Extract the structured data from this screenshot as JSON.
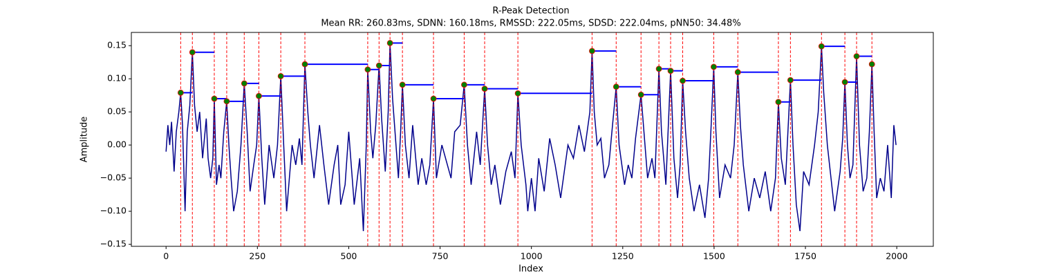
{
  "chart_data": {
    "type": "line",
    "title": "R-Peak Detection",
    "subtitle": "Mean RR: 260.83ms, SDNN: 160.18ms, RMSSD: 222.05ms, SDSD: 222.04ms, pNN50: 34.48%",
    "xlabel": "Index",
    "ylabel": "Amplitude",
    "xlim": [
      -95,
      2100
    ],
    "ylim": [
      -0.153,
      0.17
    ],
    "xticks": [
      0,
      250,
      500,
      750,
      1000,
      1250,
      1500,
      1750,
      2000
    ],
    "yticks": [
      {
        "value": -0.15,
        "label": "−0.15"
      },
      {
        "value": -0.1,
        "label": "−0.10"
      },
      {
        "value": -0.05,
        "label": "−0.05"
      },
      {
        "value": 0,
        "label": "0.00"
      },
      {
        "value": 0.05,
        "label": "0.05"
      },
      {
        "value": 0.1,
        "label": "0.10"
      },
      {
        "value": 0.15,
        "label": "0.15"
      }
    ],
    "x": [
      0,
      5,
      10,
      15,
      22,
      28,
      35,
      40,
      45,
      52,
      58,
      65,
      72,
      78,
      85,
      92,
      100,
      110,
      115,
      122,
      128,
      132,
      138,
      145,
      150,
      158,
      166,
      172,
      178,
      185,
      195,
      205,
      214,
      222,
      230,
      240,
      248,
      254,
      262,
      270,
      282,
      295,
      305,
      314,
      322,
      330,
      345,
      355,
      365,
      372,
      380,
      388,
      395,
      405,
      420,
      432,
      445,
      460,
      470,
      478,
      490,
      500,
      515,
      530,
      540,
      548,
      552,
      560,
      566,
      574,
      583,
      590,
      600,
      608,
      613,
      620,
      628,
      636,
      642,
      647,
      655,
      665,
      675,
      690,
      700,
      712,
      722,
      732,
      740,
      755,
      770,
      780,
      790,
      805,
      816,
      825,
      835,
      850,
      860,
      872,
      880,
      890,
      900,
      915,
      930,
      945,
      955,
      963,
      972,
      985,
      990,
      1000,
      1010,
      1020,
      1035,
      1050,
      1065,
      1080,
      1090,
      1100,
      1115,
      1130,
      1145,
      1160,
      1166,
      1172,
      1180,
      1190,
      1200,
      1212,
      1222,
      1232,
      1240,
      1255,
      1265,
      1275,
      1285,
      1300,
      1308,
      1318,
      1330,
      1338,
      1349,
      1356,
      1368,
      1381,
      1390,
      1400,
      1407,
      1414,
      1422,
      1432,
      1445,
      1460,
      1475,
      1485,
      1492,
      1499,
      1505,
      1515,
      1530,
      1545,
      1555,
      1565,
      1572,
      1580,
      1595,
      1610,
      1625,
      1640,
      1655,
      1668,
      1676,
      1684,
      1695,
      1709,
      1716,
      1725,
      1735,
      1745,
      1760,
      1775,
      1785,
      1794,
      1800,
      1810,
      1820,
      1830,
      1845,
      1852,
      1858,
      1865,
      1872,
      1880,
      1890,
      1898,
      1908,
      1918,
      1925,
      1932,
      1938,
      1945,
      1955,
      1965,
      1975,
      1985,
      1992,
      1998
    ],
    "signal": {
      "color": "#00008b",
      "values": [
        -0.01,
        0.03,
        0.0,
        0.035,
        -0.04,
        0.02,
        0.05,
        0.079,
        0.03,
        -0.1,
        0.02,
        0.06,
        0.14,
        0.06,
        0.02,
        0.05,
        -0.02,
        0.04,
        -0.02,
        -0.05,
        -0.02,
        0.07,
        -0.06,
        -0.03,
        -0.05,
        0.02,
        0.066,
        0.0,
        -0.05,
        -0.1,
        -0.07,
        0.0,
        0.093,
        0.02,
        -0.07,
        -0.03,
        0.0,
        0.074,
        -0.02,
        -0.09,
        0.0,
        -0.05,
        0.0,
        0.104,
        0.0,
        -0.1,
        0.0,
        -0.03,
        0.01,
        -0.03,
        0.122,
        0.05,
        0.0,
        -0.05,
        0.03,
        -0.03,
        -0.09,
        -0.03,
        0.0,
        -0.09,
        -0.06,
        0.02,
        -0.09,
        -0.02,
        -0.13,
        0.0,
        0.114,
        0.02,
        -0.02,
        0.03,
        0.12,
        0.04,
        -0.04,
        0.05,
        0.154,
        0.07,
        0.01,
        -0.05,
        0.02,
        0.091,
        0.0,
        -0.05,
        0.03,
        -0.06,
        -0.02,
        -0.06,
        -0.03,
        0.07,
        -0.05,
        0.0,
        -0.03,
        -0.05,
        0.02,
        0.03,
        0.091,
        0.0,
        -0.06,
        0.02,
        -0.03,
        0.085,
        0.0,
        -0.06,
        -0.03,
        -0.09,
        -0.04,
        -0.01,
        -0.05,
        0.078,
        0.0,
        -0.06,
        -0.1,
        -0.05,
        -0.1,
        -0.02,
        -0.07,
        0.01,
        -0.03,
        -0.08,
        -0.04,
        0.0,
        -0.02,
        0.03,
        -0.01,
        0.05,
        0.142,
        0.05,
        0.0,
        0.01,
        -0.05,
        -0.03,
        0.03,
        0.088,
        0.0,
        -0.06,
        -0.03,
        -0.05,
        0.01,
        0.076,
        0.02,
        -0.05,
        -0.02,
        -0.05,
        0.115,
        0.02,
        -0.06,
        0.112,
        -0.02,
        -0.08,
        -0.03,
        0.097,
        0.02,
        -0.05,
        -0.1,
        -0.06,
        -0.11,
        -0.05,
        0.03,
        0.118,
        0.02,
        -0.08,
        -0.03,
        -0.05,
        0.0,
        0.11,
        0.03,
        -0.03,
        -0.1,
        -0.05,
        -0.08,
        -0.04,
        -0.1,
        -0.05,
        0.065,
        -0.02,
        -0.06,
        0.098,
        0.0,
        -0.09,
        -0.13,
        -0.04,
        -0.06,
        0.0,
        0.05,
        0.149,
        0.08,
        0.0,
        -0.05,
        -0.1,
        -0.04,
        0.01,
        0.095,
        0.0,
        -0.05,
        -0.03,
        0.134,
        0.0,
        -0.07,
        -0.05,
        0.02,
        0.122,
        0.02,
        -0.08,
        -0.05,
        -0.07,
        0.0,
        -0.08,
        0.03,
        0.0
      ]
    },
    "peaks": {
      "color": "#008000",
      "edge_color": "#ff0000",
      "interval_color": "#0000ff",
      "line_color": "#ff0000",
      "x": [
        40,
        72,
        132,
        166,
        214,
        254,
        314,
        380,
        552,
        583,
        613,
        647,
        732,
        816,
        872,
        963,
        1166,
        1232,
        1300,
        1349,
        1381,
        1414,
        1499,
        1565,
        1676,
        1709,
        1794,
        1858,
        1890,
        1932
      ],
      "values": [
        0.079,
        0.14,
        0.07,
        0.066,
        0.093,
        0.074,
        0.104,
        0.122,
        0.114,
        0.12,
        0.154,
        0.091,
        0.07,
        0.091,
        0.085,
        0.078,
        0.142,
        0.088,
        0.076,
        0.115,
        0.112,
        0.097,
        0.118,
        0.11,
        0.065,
        0.098,
        0.149,
        0.095,
        0.134,
        0.122
      ]
    }
  }
}
